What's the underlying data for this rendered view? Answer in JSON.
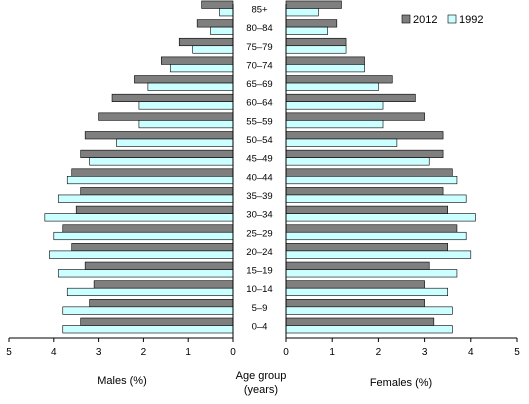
{
  "chart_data": {
    "type": "bar",
    "subtype": "population-pyramid",
    "categories": [
      "0–4",
      "5–9",
      "10–14",
      "15–19",
      "20–24",
      "25–29",
      "30–34",
      "35–39",
      "40–44",
      "45–49",
      "50–54",
      "55–59",
      "60–64",
      "65–69",
      "70–74",
      "75–79",
      "80–84",
      "85+"
    ],
    "series": [
      {
        "name": "2012",
        "color": "#7f7f7f",
        "males": [
          3.4,
          3.2,
          3.1,
          3.3,
          3.6,
          3.8,
          3.5,
          3.4,
          3.6,
          3.4,
          3.3,
          3.0,
          2.7,
          2.2,
          1.6,
          1.2,
          0.8,
          0.7
        ],
        "females": [
          3.2,
          3.0,
          3.0,
          3.1,
          3.5,
          3.7,
          3.5,
          3.4,
          3.6,
          3.4,
          3.4,
          3.0,
          2.8,
          2.3,
          1.7,
          1.3,
          1.1,
          1.2
        ]
      },
      {
        "name": "1992",
        "color": "#ccffff",
        "males": [
          3.8,
          3.8,
          3.7,
          3.9,
          4.1,
          4.0,
          4.2,
          3.9,
          3.7,
          3.2,
          2.6,
          2.1,
          2.1,
          1.9,
          1.4,
          0.9,
          0.5,
          0.3
        ],
        "females": [
          3.6,
          3.6,
          3.5,
          3.7,
          4.0,
          3.9,
          4.1,
          3.9,
          3.7,
          3.1,
          2.4,
          2.1,
          2.1,
          2.0,
          1.7,
          1.3,
          0.9,
          0.7
        ]
      }
    ],
    "male_axis": {
      "label": "Males (%)",
      "ticks": [
        "5",
        "4",
        "3",
        "2",
        "1",
        "0"
      ],
      "range": [
        0,
        5
      ],
      "reversed": true
    },
    "female_axis": {
      "label": "Females (%)",
      "ticks": [
        "0",
        "1",
        "2",
        "3",
        "4",
        "5"
      ],
      "range": [
        0,
        5
      ]
    },
    "center_label": [
      "Age group",
      "(years)"
    ],
    "legend": {
      "position": "top-right",
      "entries": [
        "2012",
        "1992"
      ]
    },
    "grid": false
  }
}
